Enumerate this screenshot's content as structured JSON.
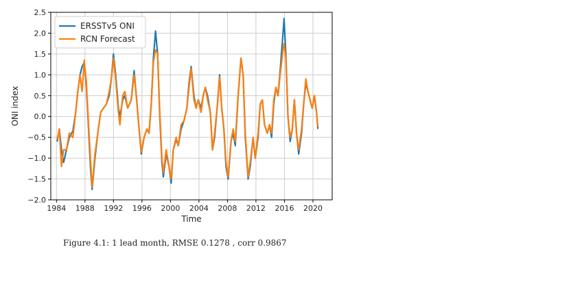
{
  "caption": "Figure 4.1: 1 lead month, RMSE 0.1278 , corr 0.9867",
  "chart_data": {
    "type": "line",
    "xlabel": "Time",
    "ylabel": "ONI index",
    "xlim": [
      1983.2,
      2022.7
    ],
    "ylim": [
      -2.0,
      2.5
    ],
    "xticks": [
      "1984",
      "1988",
      "1992",
      "1996",
      "2000",
      "2004",
      "2008",
      "2012",
      "2016",
      "2020"
    ],
    "yticks": [
      "2.5",
      "2.0",
      "1.5",
      "1.0",
      "0.5",
      "0.0",
      "−0.5",
      "−1.0",
      "−1.5",
      "−2.0"
    ],
    "grid": true,
    "legend_position": "top-left",
    "series": [
      {
        "name": "ERSSTv5 ONI",
        "color": "#1f77b4",
        "points": [
          [
            1984.1,
            -0.6
          ],
          [
            1984.4,
            -0.3
          ],
          [
            1984.7,
            -0.8
          ],
          [
            1985.0,
            -1.1
          ],
          [
            1985.4,
            -0.8
          ],
          [
            1985.8,
            -0.5
          ],
          [
            1986.3,
            -0.35
          ],
          [
            1986.7,
            0.1
          ],
          [
            1987.0,
            0.6
          ],
          [
            1987.3,
            1.0
          ],
          [
            1987.6,
            1.2
          ],
          [
            1987.9,
            1.3
          ],
          [
            1988.2,
            0.7
          ],
          [
            1988.5,
            -0.3
          ],
          [
            1988.8,
            -1.3
          ],
          [
            1989.0,
            -1.75
          ],
          [
            1989.4,
            -1.0
          ],
          [
            1989.8,
            -0.4
          ],
          [
            1990.2,
            0.1
          ],
          [
            1990.6,
            0.2
          ],
          [
            1991.0,
            0.3
          ],
          [
            1991.4,
            0.5
          ],
          [
            1991.7,
            0.9
          ],
          [
            1992.0,
            1.5
          ],
          [
            1992.3,
            1.0
          ],
          [
            1992.7,
            0.2
          ],
          [
            1992.9,
            0.0
          ],
          [
            1993.3,
            0.4
          ],
          [
            1993.6,
            0.5
          ],
          [
            1994.0,
            0.2
          ],
          [
            1994.5,
            0.4
          ],
          [
            1994.9,
            1.1
          ],
          [
            1995.2,
            0.5
          ],
          [
            1995.6,
            -0.3
          ],
          [
            1995.9,
            -0.9
          ],
          [
            1996.3,
            -0.5
          ],
          [
            1996.7,
            -0.3
          ],
          [
            1997.0,
            -0.4
          ],
          [
            1997.3,
            0.3
          ],
          [
            1997.6,
            1.4
          ],
          [
            1997.9,
            2.05
          ],
          [
            1998.2,
            1.5
          ],
          [
            1998.5,
            0.0
          ],
          [
            1998.8,
            -1.1
          ],
          [
            1999.0,
            -1.45
          ],
          [
            1999.4,
            -0.9
          ],
          [
            1999.8,
            -1.2
          ],
          [
            2000.1,
            -1.6
          ],
          [
            2000.4,
            -0.8
          ],
          [
            2000.8,
            -0.55
          ],
          [
            2001.1,
            -0.7
          ],
          [
            2001.5,
            -0.3
          ],
          [
            2001.9,
            -0.1
          ],
          [
            2002.3,
            0.2
          ],
          [
            2002.6,
            0.8
          ],
          [
            2002.9,
            1.2
          ],
          [
            2003.3,
            0.5
          ],
          [
            2003.6,
            0.2
          ],
          [
            2003.9,
            0.4
          ],
          [
            2004.3,
            0.2
          ],
          [
            2004.6,
            0.5
          ],
          [
            2004.9,
            0.7
          ],
          [
            2005.2,
            0.5
          ],
          [
            2005.6,
            0.1
          ],
          [
            2005.9,
            -0.8
          ],
          [
            2006.2,
            -0.5
          ],
          [
            2006.6,
            0.3
          ],
          [
            2006.9,
            1.0
          ],
          [
            2007.2,
            0.2
          ],
          [
            2007.5,
            -0.3
          ],
          [
            2007.8,
            -1.2
          ],
          [
            2008.1,
            -1.5
          ],
          [
            2008.5,
            -0.6
          ],
          [
            2008.8,
            -0.4
          ],
          [
            2009.1,
            -0.7
          ],
          [
            2009.5,
            0.5
          ],
          [
            2009.9,
            1.4
          ],
          [
            2010.2,
            1.0
          ],
          [
            2010.5,
            -0.5
          ],
          [
            2010.9,
            -1.5
          ],
          [
            2011.2,
            -1.2
          ],
          [
            2011.6,
            -0.5
          ],
          [
            2011.9,
            -1.0
          ],
          [
            2012.3,
            -0.5
          ],
          [
            2012.6,
            0.3
          ],
          [
            2012.9,
            0.4
          ],
          [
            2013.2,
            -0.2
          ],
          [
            2013.6,
            -0.4
          ],
          [
            2013.9,
            -0.2
          ],
          [
            2014.2,
            -0.5
          ],
          [
            2014.5,
            0.3
          ],
          [
            2014.8,
            0.7
          ],
          [
            2015.1,
            0.5
          ],
          [
            2015.4,
            1.1
          ],
          [
            2015.8,
            2.0
          ],
          [
            2015.95,
            2.35
          ],
          [
            2016.2,
            1.5
          ],
          [
            2016.5,
            0.0
          ],
          [
            2016.8,
            -0.6
          ],
          [
            2017.1,
            -0.3
          ],
          [
            2017.4,
            0.4
          ],
          [
            2017.7,
            -0.4
          ],
          [
            2018.0,
            -0.9
          ],
          [
            2018.4,
            -0.4
          ],
          [
            2018.7,
            0.3
          ],
          [
            2019.0,
            0.8
          ],
          [
            2019.3,
            0.6
          ],
          [
            2019.6,
            0.4
          ],
          [
            2019.9,
            0.2
          ],
          [
            2020.2,
            0.5
          ],
          [
            2020.5,
            0.1
          ],
          [
            2020.7,
            -0.3
          ]
        ]
      },
      {
        "name": "RCN Forecast",
        "color": "#ff7f0e",
        "points": [
          [
            1984.1,
            -0.55
          ],
          [
            1984.4,
            -0.3
          ],
          [
            1984.7,
            -1.2
          ],
          [
            1985.0,
            -0.8
          ],
          [
            1985.4,
            -0.8
          ],
          [
            1985.8,
            -0.4
          ],
          [
            1986.3,
            -0.5
          ],
          [
            1986.7,
            0.1
          ],
          [
            1987.0,
            0.6
          ],
          [
            1987.3,
            1.0
          ],
          [
            1987.6,
            0.6
          ],
          [
            1987.9,
            1.35
          ],
          [
            1988.2,
            0.8
          ],
          [
            1988.5,
            -0.2
          ],
          [
            1988.8,
            -1.1
          ],
          [
            1989.0,
            -1.7
          ],
          [
            1989.4,
            -0.9
          ],
          [
            1989.8,
            -0.4
          ],
          [
            1990.2,
            0.1
          ],
          [
            1990.6,
            0.2
          ],
          [
            1991.0,
            0.3
          ],
          [
            1991.4,
            0.6
          ],
          [
            1991.7,
            0.9
          ],
          [
            1992.0,
            1.4
          ],
          [
            1992.3,
            0.9
          ],
          [
            1992.7,
            0.1
          ],
          [
            1992.9,
            -0.2
          ],
          [
            1993.3,
            0.5
          ],
          [
            1993.6,
            0.6
          ],
          [
            1994.0,
            0.2
          ],
          [
            1994.5,
            0.4
          ],
          [
            1994.9,
            1.0
          ],
          [
            1995.2,
            0.5
          ],
          [
            1995.6,
            -0.3
          ],
          [
            1995.9,
            -0.85
          ],
          [
            1996.3,
            -0.5
          ],
          [
            1996.7,
            -0.3
          ],
          [
            1997.0,
            -0.4
          ],
          [
            1997.3,
            0.3
          ],
          [
            1997.6,
            1.3
          ],
          [
            1997.9,
            1.6
          ],
          [
            1998.2,
            1.5
          ],
          [
            1998.5,
            0.1
          ],
          [
            1998.8,
            -1.0
          ],
          [
            1999.0,
            -1.35
          ],
          [
            1999.4,
            -0.8
          ],
          [
            1999.8,
            -1.2
          ],
          [
            2000.1,
            -1.5
          ],
          [
            2000.4,
            -0.8
          ],
          [
            2000.8,
            -0.5
          ],
          [
            2001.1,
            -0.7
          ],
          [
            2001.5,
            -0.2
          ],
          [
            2001.9,
            -0.1
          ],
          [
            2002.3,
            0.2
          ],
          [
            2002.6,
            0.7
          ],
          [
            2002.9,
            1.15
          ],
          [
            2003.3,
            0.4
          ],
          [
            2003.6,
            0.2
          ],
          [
            2003.9,
            0.4
          ],
          [
            2004.3,
            0.1
          ],
          [
            2004.6,
            0.5
          ],
          [
            2004.9,
            0.7
          ],
          [
            2005.2,
            0.4
          ],
          [
            2005.6,
            0.1
          ],
          [
            2005.9,
            -0.8
          ],
          [
            2006.2,
            -0.4
          ],
          [
            2006.6,
            0.3
          ],
          [
            2006.9,
            0.95
          ],
          [
            2007.2,
            0.2
          ],
          [
            2007.5,
            -0.3
          ],
          [
            2007.8,
            -1.1
          ],
          [
            2008.1,
            -1.45
          ],
          [
            2008.5,
            -0.6
          ],
          [
            2008.8,
            -0.3
          ],
          [
            2009.1,
            -0.6
          ],
          [
            2009.5,
            0.5
          ],
          [
            2009.9,
            1.4
          ],
          [
            2010.2,
            1.0
          ],
          [
            2010.5,
            -0.4
          ],
          [
            2010.9,
            -1.45
          ],
          [
            2011.2,
            -1.1
          ],
          [
            2011.6,
            -0.5
          ],
          [
            2011.9,
            -1.0
          ],
          [
            2012.3,
            -0.4
          ],
          [
            2012.6,
            0.3
          ],
          [
            2012.9,
            0.4
          ],
          [
            2013.2,
            -0.2
          ],
          [
            2013.6,
            -0.4
          ],
          [
            2013.9,
            -0.2
          ],
          [
            2014.2,
            -0.4
          ],
          [
            2014.5,
            0.4
          ],
          [
            2014.8,
            0.7
          ],
          [
            2015.1,
            0.5
          ],
          [
            2015.4,
            1.0
          ],
          [
            2015.8,
            1.6
          ],
          [
            2015.95,
            1.75
          ],
          [
            2016.2,
            1.4
          ],
          [
            2016.5,
            0.0
          ],
          [
            2016.8,
            -0.5
          ],
          [
            2017.1,
            -0.3
          ],
          [
            2017.4,
            0.4
          ],
          [
            2017.7,
            -0.4
          ],
          [
            2018.0,
            -0.8
          ],
          [
            2018.4,
            -0.3
          ],
          [
            2018.7,
            0.3
          ],
          [
            2019.0,
            0.9
          ],
          [
            2019.3,
            0.6
          ],
          [
            2019.6,
            0.4
          ],
          [
            2019.9,
            0.2
          ],
          [
            2020.2,
            0.5
          ],
          [
            2020.5,
            0.1
          ],
          [
            2020.7,
            -0.25
          ]
        ]
      }
    ]
  }
}
